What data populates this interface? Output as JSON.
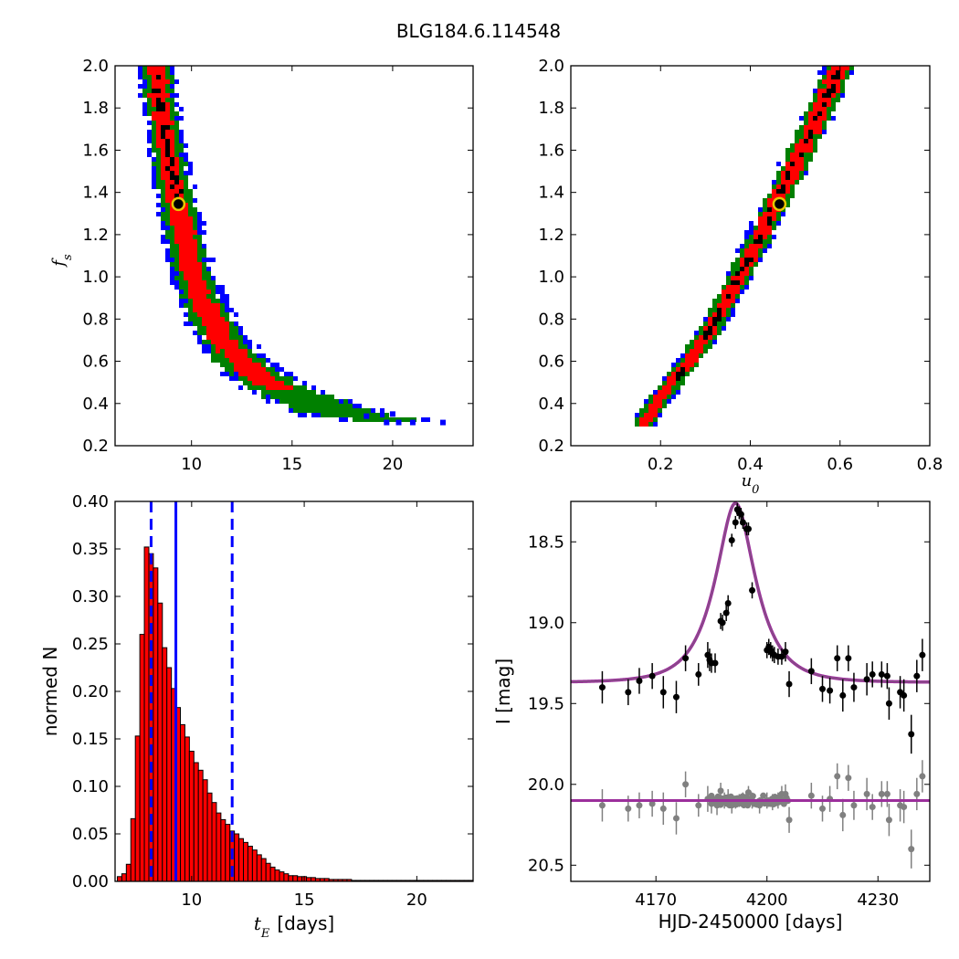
{
  "figure": {
    "title": "BLG184.6.114548"
  },
  "colors": {
    "blue": "#0000ff",
    "green": "#008000",
    "red": "#ff0000",
    "black": "#000000",
    "model": "#9b2f9b",
    "gray": "#808080",
    "marker": "#e6c800"
  },
  "chart_data": [
    {
      "type": "heatmap",
      "panel": "top-left",
      "xlabel": "",
      "ylabel_sym": "f",
      "ylabel_sub": "s",
      "xlim": [
        6.2,
        24
      ],
      "ylim": [
        0.2,
        2.0
      ],
      "xticks": [
        10,
        15,
        20
      ],
      "yticks": [
        0.2,
        0.4,
        0.6,
        0.8,
        1.0,
        1.2,
        1.4,
        1.6,
        1.8,
        2.0
      ],
      "ytick_labels": [
        "0.2",
        "0.4",
        "0.6",
        "0.8",
        "1.0",
        "1.2",
        "1.4",
        "1.6",
        "1.8",
        "2.0"
      ],
      "best_fit": [
        9.35,
        1.345
      ],
      "band_curve": {
        "a": 3.0,
        "b": 0.35,
        "f0": 0.15
      },
      "band_points_fs": [
        0.3,
        0.35,
        0.4,
        0.45,
        0.5,
        0.6,
        0.7,
        0.8,
        0.9,
        1.0,
        1.2,
        1.4,
        1.6,
        1.8,
        2.0
      ],
      "band_center_te": [
        21.5,
        17.5,
        16.2,
        14.8,
        13.8,
        12.4,
        11.6,
        11.0,
        10.5,
        10.1,
        9.6,
        9.2,
        8.8,
        8.5,
        8.2
      ],
      "band_halfwidth": [
        1.5,
        1.8,
        1.6,
        1.5,
        1.3,
        1.1,
        1.0,
        0.95,
        0.9,
        0.85,
        0.8,
        0.75,
        0.7,
        0.7,
        0.7
      ]
    },
    {
      "type": "heatmap",
      "panel": "top-right",
      "xlabel_sym": "u",
      "xlabel_sub": "0",
      "ylabel": "",
      "xlim": [
        0.0,
        0.8
      ],
      "ylim": [
        0.2,
        2.0
      ],
      "xticks": [
        0.2,
        0.4,
        0.6,
        0.8
      ],
      "xtick_labels": [
        "0.2",
        "0.4",
        "0.6",
        "0.8"
      ],
      "yticks": [
        0.2,
        0.4,
        0.6,
        0.8,
        1.0,
        1.2,
        1.4,
        1.6,
        1.8,
        2.0
      ],
      "ytick_labels": [
        "0.2",
        "0.4",
        "0.6",
        "0.8",
        "1.0",
        "1.2",
        "1.4",
        "1.6",
        "1.8",
        "2.0"
      ],
      "best_fit": [
        0.465,
        1.345
      ],
      "band_points_fs": [
        0.3,
        0.4,
        0.6,
        0.8,
        1.0,
        1.2,
        1.4,
        1.6,
        1.8,
        2.0
      ],
      "band_center_u0": [
        0.16,
        0.19,
        0.265,
        0.325,
        0.375,
        0.425,
        0.47,
        0.515,
        0.56,
        0.6
      ],
      "band_halfwidth": 0.03
    },
    {
      "type": "bar",
      "panel": "bottom-left",
      "xlabel_sym": "t",
      "xlabel_sub": "E",
      "xlabel_unit": "[days]",
      "ylabel": "normed N",
      "xlim": [
        6.6,
        22.5
      ],
      "ylim": [
        0.0,
        0.4
      ],
      "xticks": [
        10,
        15,
        20
      ],
      "yticks": [
        0.0,
        0.05,
        0.1,
        0.15,
        0.2,
        0.25,
        0.3,
        0.35,
        0.4
      ],
      "ytick_labels": [
        "0.00",
        "0.05",
        "0.10",
        "0.15",
        "0.20",
        "0.25",
        "0.30",
        "0.35",
        "0.40"
      ],
      "bin_start": 6.7,
      "bin_width": 0.2,
      "values": [
        0.005,
        0.008,
        0.018,
        0.066,
        0.153,
        0.26,
        0.352,
        0.345,
        0.33,
        0.293,
        0.246,
        0.225,
        0.203,
        0.183,
        0.165,
        0.152,
        0.137,
        0.125,
        0.117,
        0.107,
        0.093,
        0.083,
        0.072,
        0.065,
        0.06,
        0.053,
        0.05,
        0.045,
        0.041,
        0.037,
        0.033,
        0.028,
        0.024,
        0.019,
        0.015,
        0.012,
        0.01,
        0.008,
        0.006,
        0.006,
        0.005,
        0.005,
        0.004,
        0.004,
        0.003,
        0.003,
        0.003,
        0.002,
        0.002,
        0.002,
        0.002,
        0.002,
        0.001,
        0.001,
        0.001,
        0.001,
        0.001,
        0.001,
        0.001,
        0.001,
        0.001,
        0.001,
        0.001,
        0.001,
        0.001,
        0.001,
        0.001,
        0.001,
        0.001,
        0.001,
        0.001,
        0.001,
        0.001,
        0.001,
        0.001,
        0.001,
        0.001,
        0.001,
        0.001
      ],
      "median": 9.3,
      "lower": 8.2,
      "upper": 11.8
    },
    {
      "type": "scatter",
      "panel": "bottom-right",
      "xlabel": "HJD-2450000 [days]",
      "ylabel": "I [mag]",
      "xlim": [
        4147,
        4244
      ],
      "ylim": [
        20.6,
        18.25
      ],
      "xticks": [
        4170,
        4200,
        4230
      ],
      "yticks": [
        18.5,
        19.0,
        19.5,
        20.0,
        20.5
      ],
      "ytick_labels": [
        "18.5",
        "19.0",
        "19.5",
        "20.0",
        "20.5"
      ],
      "model": {
        "t0": 4191.5,
        "tE": 9.3,
        "u0": 0.465,
        "fs": 1.345,
        "I_base": 19.37,
        "I_resid_base": 20.1
      },
      "data_points": [
        [
          4155.5,
          19.4,
          0.1
        ],
        [
          4162.5,
          19.43,
          0.08
        ],
        [
          4165.5,
          19.36,
          0.08
        ],
        [
          4169.0,
          19.33,
          0.08
        ],
        [
          4172.0,
          19.43,
          0.1
        ],
        [
          4175.5,
          19.46,
          0.1
        ],
        [
          4178.0,
          19.22,
          0.08
        ],
        [
          4181.5,
          19.32,
          0.07
        ],
        [
          4184.0,
          19.2,
          0.08
        ],
        [
          4184.5,
          19.23,
          0.07
        ],
        [
          4185.0,
          19.25,
          0.06
        ],
        [
          4186.0,
          19.25,
          0.06
        ],
        [
          4187.5,
          18.99,
          0.05
        ],
        [
          4188.0,
          19.0,
          0.05
        ],
        [
          4189.0,
          18.94,
          0.05
        ],
        [
          4189.5,
          18.88,
          0.05
        ],
        [
          4190.5,
          18.49,
          0.04
        ],
        [
          4191.5,
          18.38,
          0.04
        ],
        [
          4192.0,
          18.3,
          0.04
        ],
        [
          4192.5,
          18.32,
          0.04
        ],
        [
          4193.0,
          18.33,
          0.04
        ],
        [
          4193.5,
          18.38,
          0.04
        ],
        [
          4194.5,
          18.42,
          0.04
        ],
        [
          4195.0,
          18.42,
          0.04
        ],
        [
          4196.0,
          18.8,
          0.05
        ],
        [
          4200.0,
          19.17,
          0.05
        ],
        [
          4200.5,
          19.15,
          0.05
        ],
        [
          4201.0,
          19.17,
          0.05
        ],
        [
          4201.5,
          19.19,
          0.05
        ],
        [
          4202.0,
          19.2,
          0.05
        ],
        [
          4203.0,
          19.21,
          0.05
        ],
        [
          4204.0,
          19.21,
          0.05
        ],
        [
          4205.0,
          19.18,
          0.06
        ],
        [
          4206.0,
          19.38,
          0.08
        ],
        [
          4212.0,
          19.3,
          0.08
        ],
        [
          4215.0,
          19.41,
          0.08
        ],
        [
          4217.0,
          19.42,
          0.08
        ],
        [
          4219.0,
          19.22,
          0.08
        ],
        [
          4220.5,
          19.45,
          0.1
        ],
        [
          4222.0,
          19.22,
          0.08
        ],
        [
          4223.5,
          19.4,
          0.09
        ],
        [
          4227.0,
          19.35,
          0.1
        ],
        [
          4228.5,
          19.32,
          0.08
        ],
        [
          4231.0,
          19.32,
          0.08
        ],
        [
          4232.5,
          19.33,
          0.08
        ],
        [
          4233.0,
          19.5,
          0.1
        ],
        [
          4236.0,
          19.43,
          0.1
        ],
        [
          4237.0,
          19.45,
          0.1
        ],
        [
          4239.0,
          19.69,
          0.12
        ],
        [
          4240.5,
          19.33,
          0.1
        ],
        [
          4242.0,
          19.2,
          0.1
        ]
      ],
      "resid_points": [
        [
          4155.5,
          20.13,
          0.1
        ],
        [
          4162.5,
          20.15,
          0.08
        ],
        [
          4165.5,
          20.13,
          0.08
        ],
        [
          4169.0,
          20.12,
          0.08
        ],
        [
          4172.0,
          20.15,
          0.1
        ],
        [
          4175.5,
          20.21,
          0.1
        ],
        [
          4178.0,
          20.0,
          0.08
        ],
        [
          4181.5,
          20.13,
          0.07
        ],
        [
          4184.0,
          20.09,
          0.08
        ],
        [
          4185.0,
          20.12,
          0.06
        ],
        [
          4186.5,
          20.13,
          0.06
        ],
        [
          4187.5,
          20.04,
          0.05
        ],
        [
          4188.5,
          20.1,
          0.05
        ],
        [
          4189.5,
          20.08,
          0.05
        ],
        [
          4190.5,
          20.13,
          0.05
        ],
        [
          4191.5,
          20.11,
          0.04
        ],
        [
          4192.5,
          20.1,
          0.04
        ],
        [
          4193.5,
          20.09,
          0.04
        ],
        [
          4195.0,
          20.05,
          0.04
        ],
        [
          4196.0,
          20.1,
          0.05
        ],
        [
          4198.0,
          20.13,
          0.05
        ],
        [
          4200.0,
          20.1,
          0.05
        ],
        [
          4201.5,
          20.11,
          0.05
        ],
        [
          4203.0,
          20.1,
          0.05
        ],
        [
          4204.0,
          20.06,
          0.05
        ],
        [
          4205.0,
          20.06,
          0.06
        ],
        [
          4206.0,
          20.22,
          0.08
        ],
        [
          4212.0,
          20.07,
          0.08
        ],
        [
          4215.0,
          20.15,
          0.08
        ],
        [
          4217.0,
          20.09,
          0.08
        ],
        [
          4219.0,
          19.95,
          0.08
        ],
        [
          4220.5,
          20.19,
          0.1
        ],
        [
          4222.0,
          19.96,
          0.08
        ],
        [
          4223.5,
          20.13,
          0.09
        ],
        [
          4227.0,
          20.06,
          0.1
        ],
        [
          4228.5,
          20.14,
          0.08
        ],
        [
          4231.0,
          20.06,
          0.08
        ],
        [
          4232.5,
          20.06,
          0.08
        ],
        [
          4233.0,
          20.22,
          0.1
        ],
        [
          4236.0,
          20.13,
          0.1
        ],
        [
          4237.0,
          20.14,
          0.1
        ],
        [
          4239.0,
          20.4,
          0.12
        ],
        [
          4240.5,
          20.06,
          0.1
        ],
        [
          4242.0,
          19.95,
          0.1
        ]
      ]
    }
  ]
}
